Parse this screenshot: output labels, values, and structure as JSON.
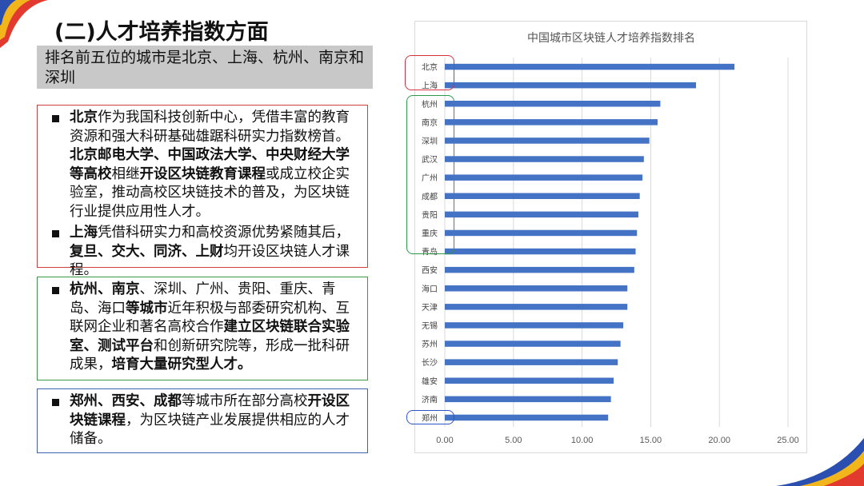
{
  "title": "(二)人才培养指数方面",
  "summary": "排名前五位的城市是北京、上海、杭州、南京和深圳",
  "box_red": {
    "p1": [
      {
        "t": "北京",
        "b": true
      },
      {
        "t": "作为我国科技创新中心，凭借丰富的教育资源和强大科研基础雄踞科研实力指数榜首。",
        "b": false
      },
      {
        "t": "北京邮电大学、中国政法大学、中央财经大学等高校",
        "b": true
      },
      {
        "t": "相继",
        "b": false
      },
      {
        "t": "开设区块链教育课程",
        "b": true
      },
      {
        "t": "或成立校企实验室，推动高校区块链技术的普及，为区块链行业提供应用性人才。",
        "b": false
      }
    ],
    "p2": [
      {
        "t": "上海",
        "b": true
      },
      {
        "t": "凭借科研实力和高校资源优势紧随其后，",
        "b": false
      },
      {
        "t": "复旦、交大、同济、上财",
        "b": true
      },
      {
        "t": "均开设区块链人才课程。",
        "b": false
      }
    ]
  },
  "box_green": {
    "p1": [
      {
        "t": "杭州、南京",
        "b": true
      },
      {
        "t": "、深圳、广州、贵阳、重庆、青岛、海口",
        "b": false
      },
      {
        "t": "等城市",
        "b": true
      },
      {
        "t": "近年积极与部委研究机构、互联网企业和著名高校合作",
        "b": false
      },
      {
        "t": "建立区块链联合实验室、测试平台",
        "b": true
      },
      {
        "t": "和创新研究院等，形成一批科研成果，",
        "b": false
      },
      {
        "t": "培育大量研究型人才。",
        "b": true
      }
    ]
  },
  "box_blue": {
    "p1": [
      {
        "t": "郑州、西安、成都",
        "b": true
      },
      {
        "t": "等城市所在部分高校",
        "b": false
      },
      {
        "t": "开设区块链课程",
        "b": true
      },
      {
        "t": "，为区块链产业发展提供相应的人才储备。",
        "b": false
      }
    ]
  },
  "colors": {
    "bar": "#4472c4",
    "highlight_red": "#d83040",
    "highlight_green": "#2d9a4a",
    "highlight_blue": "#2e55c8"
  },
  "chart_data": {
    "type": "bar",
    "orientation": "horizontal",
    "title": "中国城市区块链人才培养指数排名",
    "categories": [
      "北京",
      "上海",
      "杭州",
      "南京",
      "深圳",
      "武汉",
      "广州",
      "成都",
      "贵阳",
      "重庆",
      "青岛",
      "西安",
      "海口",
      "天津",
      "无锡",
      "苏州",
      "长沙",
      "雄安",
      "济南",
      "郑州"
    ],
    "values": [
      21.1,
      18.3,
      15.7,
      15.5,
      14.9,
      14.5,
      14.4,
      14.2,
      14.1,
      14.0,
      13.9,
      13.8,
      13.3,
      13.3,
      13.0,
      12.8,
      12.6,
      12.3,
      12.1,
      11.9
    ],
    "xlim": [
      0,
      25
    ],
    "xticks": [
      "0.00",
      "5.00",
      "10.00",
      "15.00",
      "20.00",
      "25.00"
    ],
    "grid": true,
    "legend": "none"
  }
}
